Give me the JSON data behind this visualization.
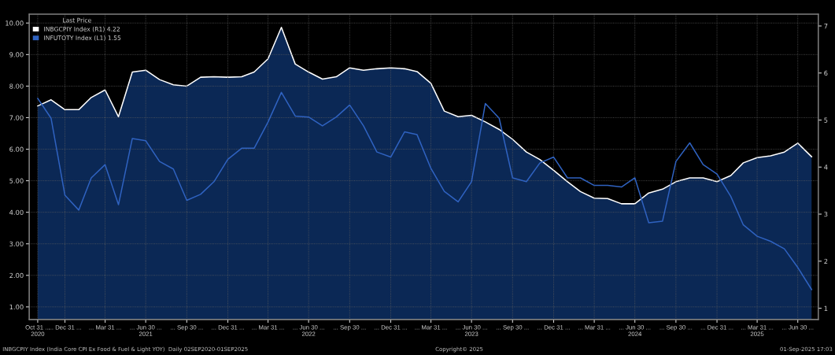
{
  "chart_data": {
    "type": "line",
    "legend_title": "Last Price",
    "legend": "top left",
    "grid": true,
    "x": [
      "2020-10-31",
      "2020-11-30",
      "2020-12-31",
      "2021-01-31",
      "2021-02-28",
      "2021-03-31",
      "2021-04-30",
      "2021-05-31",
      "2021-06-30",
      "2021-07-31",
      "2021-08-31",
      "2021-09-30",
      "2021-10-31",
      "2021-11-30",
      "2021-12-31",
      "2022-01-31",
      "2022-02-28",
      "2022-03-31",
      "2022-04-30",
      "2022-05-31",
      "2022-06-30",
      "2022-07-31",
      "2022-08-31",
      "2022-09-30",
      "2022-10-31",
      "2022-11-30",
      "2022-12-31",
      "2023-01-31",
      "2023-02-28",
      "2023-03-31",
      "2023-04-30",
      "2023-05-31",
      "2023-06-30",
      "2023-07-31",
      "2023-08-31",
      "2023-09-30",
      "2023-10-31",
      "2023-11-30",
      "2023-12-31",
      "2024-01-31",
      "2024-02-29",
      "2024-03-31",
      "2024-04-30",
      "2024-05-31",
      "2024-06-30",
      "2024-07-31",
      "2024-08-31",
      "2024-09-30",
      "2024-10-31",
      "2024-11-30",
      "2024-12-31",
      "2025-01-31",
      "2025-02-28",
      "2025-03-31",
      "2025-04-30",
      "2025-05-31",
      "2025-06-30",
      "2025-07-31"
    ],
    "series": [
      {
        "name": "INBGCPIY Index (R1) 4.22",
        "type": "area",
        "axis": "y2",
        "color": "#ffffff",
        "values": [
          5.3,
          5.43,
          5.22,
          5.22,
          5.48,
          5.64,
          5.07,
          6.02,
          6.06,
          5.86,
          5.75,
          5.72,
          5.91,
          5.92,
          5.91,
          5.92,
          6.02,
          6.3,
          6.97,
          6.19,
          6.02,
          5.87,
          5.92,
          6.11,
          6.06,
          6.09,
          6.11,
          6.09,
          6.03,
          5.78,
          5.19,
          5.07,
          5.1,
          4.96,
          4.8,
          4.59,
          4.32,
          4.16,
          3.93,
          3.69,
          3.48,
          3.34,
          3.33,
          3.22,
          3.22,
          3.45,
          3.53,
          3.69,
          3.77,
          3.77,
          3.69,
          3.82,
          4.09,
          4.2,
          4.24,
          4.32,
          4.51,
          4.22
        ]
      },
      {
        "name": "INFUTOTY Index (L1) 1.55",
        "color": "#2f62c0",
        "values": [
          7.61,
          6.98,
          4.54,
          4.07,
          5.09,
          5.51,
          4.24,
          6.34,
          6.27,
          5.61,
          5.37,
          4.38,
          4.57,
          4.97,
          5.68,
          6.03,
          6.03,
          6.86,
          7.8,
          7.05,
          7.02,
          6.74,
          7.02,
          7.4,
          6.74,
          5.91,
          5.75,
          6.55,
          6.46,
          5.39,
          4.66,
          4.33,
          4.97,
          7.45,
          6.98,
          5.09,
          4.97,
          5.56,
          5.75,
          5.09,
          5.09,
          4.85,
          4.85,
          4.8,
          5.09,
          3.67,
          3.72,
          5.61,
          6.2,
          5.51,
          5.21,
          4.5,
          3.6,
          3.24,
          3.08,
          2.84,
          2.25,
          1.55
        ]
      }
    ],
    "xlim": [
      "2020-10-12",
      "2025-08-15"
    ],
    "xticks": [
      {
        "value": "2020-10-31",
        "label": "Oct 31 ...\n2020"
      },
      {
        "value": "2020-12-31",
        "label": "... Dec 31 ..."
      },
      {
        "value": "2021-03-31",
        "label": "... Mar 31 ..."
      },
      {
        "value": "2021-06-30",
        "label": "... Jun 30 ...\n2021"
      },
      {
        "value": "2021-09-30",
        "label": "... Sep 30 ..."
      },
      {
        "value": "2021-12-31",
        "label": "... Dec 31 ..."
      },
      {
        "value": "2022-03-31",
        "label": "... Mar 31 ..."
      },
      {
        "value": "2022-06-30",
        "label": "... Jun 30 ...\n2022"
      },
      {
        "value": "2022-09-30",
        "label": "... Sep 30 ..."
      },
      {
        "value": "2022-12-31",
        "label": "... Dec 31 ..."
      },
      {
        "value": "2023-03-31",
        "label": "... Mar 31 ..."
      },
      {
        "value": "2023-06-30",
        "label": "... Jun 30 ...\n2023"
      },
      {
        "value": "2023-09-30",
        "label": "... Sep 30 ..."
      },
      {
        "value": "2023-12-31",
        "label": "... Dec 31 ..."
      },
      {
        "value": "2024-03-31",
        "label": "... Mar 31 ..."
      },
      {
        "value": "2024-06-30",
        "label": "... Jun 30 ...\n2024"
      },
      {
        "value": "2024-09-30",
        "label": "... Sep 30 ..."
      },
      {
        "value": "2024-12-31",
        "label": "... Dec 31 ..."
      },
      {
        "value": "2025-03-31",
        "label": "... Mar 31 ...\n2025"
      },
      {
        "value": "2025-06-30",
        "label": "... Jun 30 ..."
      }
    ],
    "ylim": [
      0.6,
      10.28
    ],
    "yticks": [
      {
        "value": 1,
        "label": "1.00"
      },
      {
        "value": 2,
        "label": "2.00"
      },
      {
        "value": 3,
        "label": "3.00"
      },
      {
        "value": 4,
        "label": "4.00"
      },
      {
        "value": 5,
        "label": "5.00"
      },
      {
        "value": 6,
        "label": "6.00"
      },
      {
        "value": 7,
        "label": "7.00"
      },
      {
        "value": 8,
        "label": "8.00"
      },
      {
        "value": 9,
        "label": "9.00"
      },
      {
        "value": 10,
        "label": "10.00"
      }
    ],
    "y2lim": [
      0.76,
      7.25
    ],
    "y2ticks": [
      1,
      2,
      3,
      4,
      5,
      6,
      7
    ],
    "annotations": [
      "INBGCPIY Index (India Core CPI Ex Food & Fuel & Light YOY)  Daily 02SEP2020-01SEP2025",
      "Copyright© 2025",
      "01-Sep-2025 17:03"
    ]
  }
}
